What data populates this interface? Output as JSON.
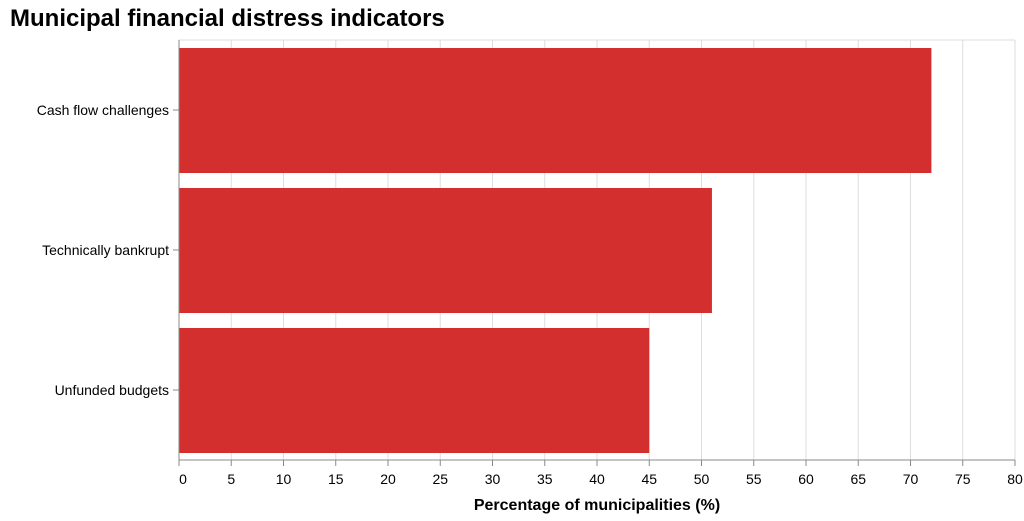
{
  "chart_data": {
    "type": "bar",
    "orientation": "horizontal",
    "title": "Municipal financial distress indicators",
    "xlabel": "Percentage of municipalities (%)",
    "ylabel": "",
    "categories": [
      "Cash flow challenges",
      "Technically bankrupt",
      "Unfunded budgets"
    ],
    "values": [
      72,
      51,
      45
    ],
    "xlim": [
      0,
      80
    ],
    "xticks": [
      0,
      5,
      10,
      15,
      20,
      25,
      30,
      35,
      40,
      45,
      50,
      55,
      60,
      65,
      70,
      75,
      80
    ],
    "grid": true,
    "bar_color": "#d32f2f",
    "grid_color": "#dddddd",
    "axis_color": "#888888"
  }
}
